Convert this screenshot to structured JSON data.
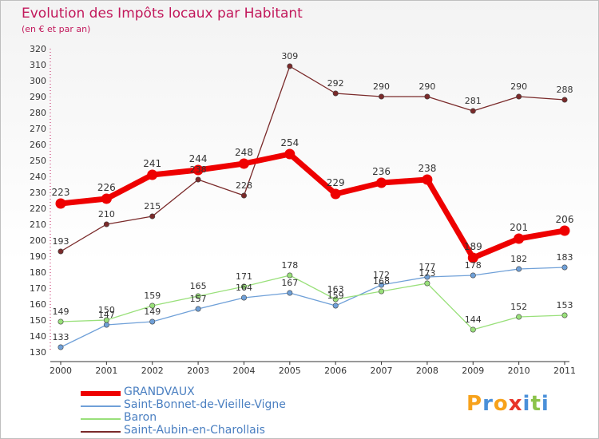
{
  "header": {
    "title": "Evolution des Impôts locaux par Habitant",
    "subtitle": "(en € et par an)"
  },
  "logo": {
    "text": "Proxiti",
    "letters": [
      {
        "ch": "P",
        "color": "#f7a21b"
      },
      {
        "ch": "r",
        "color": "#4a90d9"
      },
      {
        "ch": "o",
        "color": "#f7a21b"
      },
      {
        "ch": "x",
        "color": "#e8342a"
      },
      {
        "ch": "i",
        "color": "#4a90d9"
      },
      {
        "ch": "t",
        "color": "#8bc34a"
      },
      {
        "ch": "i",
        "color": "#4a90d9"
      }
    ]
  },
  "chart_data": {
    "type": "line",
    "title": "Evolution des Impôts locaux par Habitant",
    "subtitle": "(en € et par an)",
    "x": [
      "2000",
      "2001",
      "2002",
      "2003",
      "2004",
      "2005",
      "2006",
      "2007",
      "2008",
      "2009",
      "2010",
      "2011"
    ],
    "ylim": [
      130,
      320
    ],
    "yticks": [
      130,
      140,
      150,
      160,
      170,
      180,
      190,
      200,
      210,
      220,
      230,
      240,
      250,
      260,
      270,
      280,
      290,
      300,
      310,
      320
    ],
    "grid": false,
    "legend_position": "bottom",
    "series": [
      {
        "name": "GRANDVAUX",
        "color": "#ee0000",
        "emphasis": true,
        "values": [
          223,
          226,
          241,
          244,
          248,
          254,
          229,
          236,
          238,
          189,
          201,
          206
        ]
      },
      {
        "name": "Saint-Bonnet-de-Vieille-Vigne",
        "color": "#6fa0d8",
        "values": [
          133,
          147,
          149,
          157,
          164,
          167,
          159,
          172,
          177,
          178,
          182,
          183
        ]
      },
      {
        "name": "Baron",
        "color": "#99e07a",
        "values": [
          149,
          150,
          159,
          165,
          171,
          178,
          163,
          168,
          173,
          144,
          152,
          153
        ]
      },
      {
        "name": "Saint-Aubin-en-Charollais",
        "color": "#7a2a2a",
        "values": [
          193,
          210,
          215,
          238,
          228,
          309,
          292,
          290,
          290,
          281,
          290,
          288
        ]
      }
    ]
  },
  "legend": {
    "items": [
      {
        "label": "GRANDVAUX",
        "color": "#ee0000",
        "weight": 6
      },
      {
        "label": "Saint-Bonnet-de-Vieille-Vigne",
        "color": "#6fa0d8",
        "weight": 2
      },
      {
        "label": "Baron",
        "color": "#99e07a",
        "weight": 2
      },
      {
        "label": "Saint-Aubin-en-Charollais",
        "color": "#7a2a2a",
        "weight": 2
      }
    ]
  }
}
